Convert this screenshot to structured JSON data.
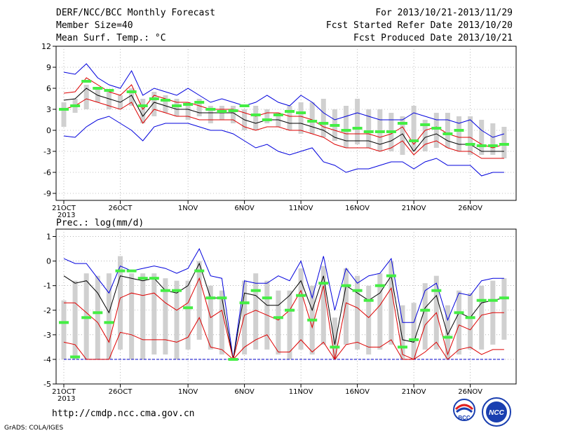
{
  "header": {
    "title": "DERF/NCC/BCC Monthly Forecast",
    "member_size": "Member Size=40",
    "variable": "Mean Surf. Temp.: °C",
    "period": "For 2013/10/21-2013/11/29",
    "refer_date": "Fcst Started Refer Date 2013/10/20",
    "produced_date": "Fcst Produced Date 2013/10/21"
  },
  "footer": {
    "url": "http://cmdp.ncc.cma.gov.cn",
    "credit": "GrADS: COLA/IGES"
  },
  "logos": [
    {
      "name": "bcc-logo",
      "text": "BCC"
    },
    {
      "name": "ncc-logo",
      "text": "NCC"
    }
  ],
  "colors": {
    "bound": "#0000dd",
    "spread": "#dd0000",
    "mean": "#000000",
    "box": "#d0d0d0",
    "obs": "#44ee44",
    "floor": "#0000cc"
  },
  "chart_data": [
    {
      "type": "box-line",
      "title": "",
      "ylabel": "",
      "ylim": [
        -10,
        12
      ],
      "yticks": [
        -9,
        -6,
        -3,
        0,
        3,
        6,
        9,
        12
      ],
      "xticks": [
        "21OCT",
        "26OCT",
        "1NOV",
        "6NOV",
        "11NOV",
        "16NOV",
        "21NOV",
        "26NOV"
      ],
      "xtick_days": [
        0,
        5,
        11,
        16,
        21,
        26,
        31,
        36
      ],
      "year_label": "2013",
      "x": [
        0,
        1,
        2,
        3,
        4,
        5,
        6,
        7,
        8,
        9,
        10,
        11,
        12,
        13,
        14,
        15,
        16,
        17,
        18,
        19,
        20,
        21,
        22,
        23,
        24,
        25,
        26,
        27,
        28,
        29,
        30,
        31,
        32,
        33,
        34,
        35,
        36,
        37,
        38,
        39
      ],
      "box_high": [
        4.0,
        4.5,
        6.5,
        6.0,
        5.5,
        5.0,
        6.0,
        4.5,
        5.5,
        5.0,
        4.5,
        4.0,
        4.5,
        3.5,
        3.5,
        3.5,
        3.0,
        3.5,
        3.0,
        2.5,
        3.5,
        4.0,
        4.0,
        4.5,
        3.0,
        3.5,
        4.5,
        3.0,
        3.0,
        2.5,
        2.0,
        3.5,
        1.5,
        2.5,
        2.5,
        2.0,
        2.0,
        1.5,
        1.0,
        0.5
      ],
      "box_low": [
        0.5,
        2.5,
        3.0,
        4.0,
        3.0,
        3.0,
        3.5,
        1.0,
        2.0,
        2.5,
        2.0,
        1.5,
        2.0,
        1.0,
        1.5,
        1.0,
        0.0,
        0.0,
        1.0,
        0.5,
        0.0,
        -0.5,
        -0.5,
        -1.0,
        -1.5,
        -2.5,
        -2.0,
        -2.5,
        -3.0,
        -3.0,
        -3.5,
        -3.0,
        -3.0,
        -2.5,
        -2.5,
        -3.0,
        -3.5,
        -3.5,
        -3.5,
        -4.0
      ],
      "series": [
        {
          "name": "",
          "role": "upper-bound",
          "values": [
            8.3,
            8.0,
            9.5,
            7.5,
            6.5,
            6.0,
            8.5,
            5.0,
            6.0,
            5.5,
            5.0,
            6.0,
            5.0,
            4.0,
            4.5,
            4.0,
            3.5,
            4.0,
            5.0,
            4.0,
            3.5,
            5.0,
            4.0,
            2.5,
            1.5,
            2.0,
            2.5,
            2.0,
            1.5,
            1.5,
            1.5,
            2.5,
            2.0,
            1.5,
            1.5,
            1.0,
            1.5,
            0.0,
            -1.0,
            -0.5
          ]
        },
        {
          "name": "",
          "role": "upper-spread",
          "values": [
            5.3,
            5.5,
            7.5,
            6.5,
            5.5,
            5.0,
            6.5,
            3.0,
            5.0,
            4.5,
            4.0,
            4.0,
            3.5,
            3.0,
            3.0,
            3.0,
            2.5,
            2.0,
            2.5,
            2.5,
            2.0,
            2.0,
            1.5,
            0.5,
            0.0,
            -0.5,
            -0.5,
            -0.5,
            -1.0,
            -0.5,
            0.5,
            -2.0,
            0.0,
            0.5,
            -0.5,
            -1.0,
            -1.0,
            -2.0,
            -2.5,
            -2.0
          ]
        },
        {
          "name": "",
          "role": "mean",
          "values": [
            4.3,
            4.5,
            6.0,
            5.0,
            4.5,
            4.0,
            5.0,
            2.0,
            4.0,
            3.5,
            3.0,
            3.0,
            2.5,
            2.5,
            2.5,
            2.5,
            1.5,
            1.0,
            1.5,
            1.5,
            1.0,
            1.0,
            0.5,
            0.0,
            -1.0,
            -1.5,
            -1.5,
            -1.5,
            -2.0,
            -1.5,
            -0.5,
            -3.0,
            -1.0,
            -0.5,
            -1.5,
            -2.0,
            -2.0,
            -3.0,
            -3.0,
            -3.0
          ]
        },
        {
          "name": "",
          "role": "lower-spread",
          "values": [
            3.0,
            3.5,
            4.5,
            4.0,
            3.5,
            3.0,
            4.0,
            1.0,
            3.0,
            2.5,
            2.0,
            2.0,
            1.5,
            1.5,
            1.5,
            1.5,
            0.5,
            0.0,
            0.5,
            0.5,
            0.0,
            0.0,
            -0.5,
            -1.0,
            -2.0,
            -2.5,
            -2.5,
            -2.5,
            -3.0,
            -2.5,
            -1.5,
            -3.5,
            -2.0,
            -1.5,
            -2.5,
            -3.0,
            -3.0,
            -4.0,
            -4.0,
            -4.0
          ]
        },
        {
          "name": "",
          "role": "lower-bound",
          "values": [
            -0.8,
            -1.0,
            0.5,
            1.5,
            2.0,
            1.0,
            0.0,
            -1.5,
            0.5,
            1.0,
            1.0,
            1.0,
            0.5,
            0.0,
            0.0,
            -0.5,
            -1.5,
            -2.5,
            -2.0,
            -3.0,
            -3.5,
            -3.0,
            -2.5,
            -4.5,
            -5.0,
            -6.0,
            -5.5,
            -5.5,
            -5.0,
            -4.5,
            -4.5,
            -5.5,
            -4.5,
            -4.0,
            -5.0,
            -5.0,
            -5.0,
            -6.5,
            -6.0,
            -6.0
          ]
        }
      ],
      "observed": [
        3.0,
        3.5,
        7.0,
        6.0,
        5.7,
        null,
        5.5,
        3.5,
        4.5,
        4.3,
        3.5,
        3.7,
        4.0,
        3.0,
        2.7,
        2.8,
        3.5,
        2.2,
        1.5,
        2.2,
        2.7,
        2.5,
        1.3,
        1.0,
        0.7,
        0.0,
        0.3,
        -0.2,
        -0.2,
        -0.2,
        1.0,
        -1.5,
        0.8,
        0.3,
        -0.5,
        0.0,
        -2.0,
        -2.2,
        -2.2,
        -2.0
      ]
    },
    {
      "type": "box-line",
      "title": "Prec.: log(mm/d)",
      "ylabel": "",
      "ylim": [
        -5,
        1.3
      ],
      "yticks": [
        -5,
        -4,
        -3,
        -2,
        -1,
        0,
        1
      ],
      "xticks": [
        "21OCT",
        "26OCT",
        "1NOV",
        "6NOV",
        "11NOV",
        "16NOV",
        "21NOV",
        "26NOV"
      ],
      "xtick_days": [
        0,
        5,
        11,
        16,
        21,
        26,
        31,
        36
      ],
      "year_label": "2013",
      "floor_value": -4,
      "x": [
        0,
        1,
        2,
        3,
        4,
        5,
        6,
        7,
        8,
        9,
        10,
        11,
        12,
        13,
        14,
        15,
        16,
        17,
        18,
        19,
        20,
        21,
        22,
        23,
        24,
        25,
        26,
        27,
        28,
        29,
        30,
        31,
        32,
        33,
        34,
        35,
        36,
        37,
        38,
        39
      ],
      "box_high": [
        -1.6,
        -0.8,
        -0.5,
        -0.6,
        -0.5,
        0.2,
        -0.5,
        -0.5,
        -0.5,
        -0.7,
        -0.8,
        -0.8,
        0.0,
        -1.0,
        -1.2,
        -4.0,
        -0.8,
        -0.5,
        -0.8,
        -1.2,
        -1.2,
        -0.3,
        -1.0,
        -0.2,
        -2.3,
        -0.3,
        -0.6,
        -1.0,
        -0.5,
        0.0,
        -1.8,
        -1.7,
        -0.9,
        -0.6,
        -1.8,
        -1.2,
        -1.3,
        -1.0,
        -0.8,
        -0.7
      ],
      "box_low": [
        -4.0,
        -4.0,
        -4.0,
        -4.0,
        -4.0,
        -3.6,
        -4.0,
        -4.0,
        -3.8,
        -3.8,
        -4.0,
        -3.6,
        -3.2,
        -3.6,
        -3.8,
        -4.0,
        -3.8,
        -3.6,
        -3.6,
        -3.8,
        -4.0,
        -3.6,
        -3.8,
        -3.4,
        -4.0,
        -3.4,
        -3.6,
        -3.8,
        -3.6,
        -3.4,
        -4.0,
        -4.0,
        -3.6,
        -3.6,
        -4.0,
        -3.8,
        -3.6,
        -3.6,
        -3.4,
        -3.2
      ],
      "series": [
        {
          "name": "",
          "role": "upper-bound",
          "values": [
            0.1,
            -0.1,
            -0.1,
            -0.7,
            -1.3,
            -0.2,
            -0.4,
            -0.3,
            -0.2,
            -0.3,
            -0.5,
            -0.3,
            0.5,
            -0.6,
            -0.7,
            -4.0,
            -0.8,
            -0.9,
            -0.9,
            -0.6,
            -0.8,
            0.0,
            -1.5,
            0.2,
            -2.0,
            -0.3,
            -0.9,
            -0.6,
            -0.5,
            0.1,
            -2.5,
            -2.5,
            -1.2,
            -0.9,
            -2.4,
            -1.3,
            -1.4,
            -0.8,
            -0.7,
            -0.7
          ]
        },
        {
          "name": "",
          "role": "mean",
          "values": [
            -0.6,
            -0.9,
            -0.8,
            -1.3,
            -2.1,
            -0.6,
            -0.7,
            -0.8,
            -0.7,
            -1.2,
            -1.3,
            -1.0,
            -0.1,
            -1.5,
            -1.5,
            -4.0,
            -1.3,
            -1.4,
            -1.8,
            -1.8,
            -1.4,
            -0.8,
            -2.0,
            -0.6,
            -3.4,
            -1.0,
            -1.3,
            -1.6,
            -1.3,
            -0.6,
            -3.2,
            -3.3,
            -1.9,
            -1.4,
            -3.0,
            -2.1,
            -2.3,
            -1.7,
            -1.6,
            -1.5
          ]
        },
        {
          "name": "",
          "role": "upper-spread",
          "values": [
            -1.7,
            -1.7,
            -2.1,
            -2.5,
            -3.3,
            -1.5,
            -1.3,
            -1.4,
            -1.3,
            -1.7,
            -2.0,
            -1.7,
            -0.7,
            -2.3,
            -2.0,
            -4.0,
            -2.2,
            -2.0,
            -2.2,
            -2.4,
            -2.0,
            -1.2,
            -2.7,
            -1.0,
            -4.0,
            -1.7,
            -1.9,
            -2.3,
            -1.8,
            -1.1,
            -3.8,
            -4.0,
            -2.6,
            -2.1,
            -3.8,
            -2.6,
            -2.8,
            -2.2,
            -2.1,
            -2.1
          ]
        },
        {
          "name": "",
          "role": "lower-spread",
          "values": [
            -3.3,
            -3.4,
            -4.0,
            -4.0,
            -4.0,
            -2.9,
            -3.0,
            -3.2,
            -3.2,
            -3.2,
            -3.3,
            -3.1,
            -2.3,
            -3.5,
            -3.6,
            -4.0,
            -3.5,
            -3.2,
            -3.0,
            -3.7,
            -3.7,
            -3.2,
            -3.7,
            -3.3,
            -4.0,
            -3.4,
            -3.3,
            -3.5,
            -3.5,
            -3.2,
            -4.0,
            -4.0,
            -3.7,
            -3.3,
            -4.0,
            -3.6,
            -3.5,
            -3.8,
            -3.6,
            -3.6
          ]
        }
      ],
      "observed": [
        -2.5,
        -3.9,
        -2.3,
        -2.1,
        -2.5,
        -0.4,
        -0.4,
        -0.7,
        -0.7,
        -1.2,
        -1.2,
        -1.9,
        -0.4,
        -1.5,
        -1.5,
        -4.0,
        -1.7,
        -1.2,
        -1.5,
        -2.3,
        -2.0,
        -1.4,
        -2.4,
        -0.9,
        -3.5,
        -1.0,
        -1.2,
        -1.6,
        -1.0,
        -0.6,
        -3.5,
        -3.2,
        -2.0,
        -1.2,
        -3.1,
        -2.1,
        -2.3,
        -1.6,
        -1.6,
        -1.5
      ]
    }
  ]
}
